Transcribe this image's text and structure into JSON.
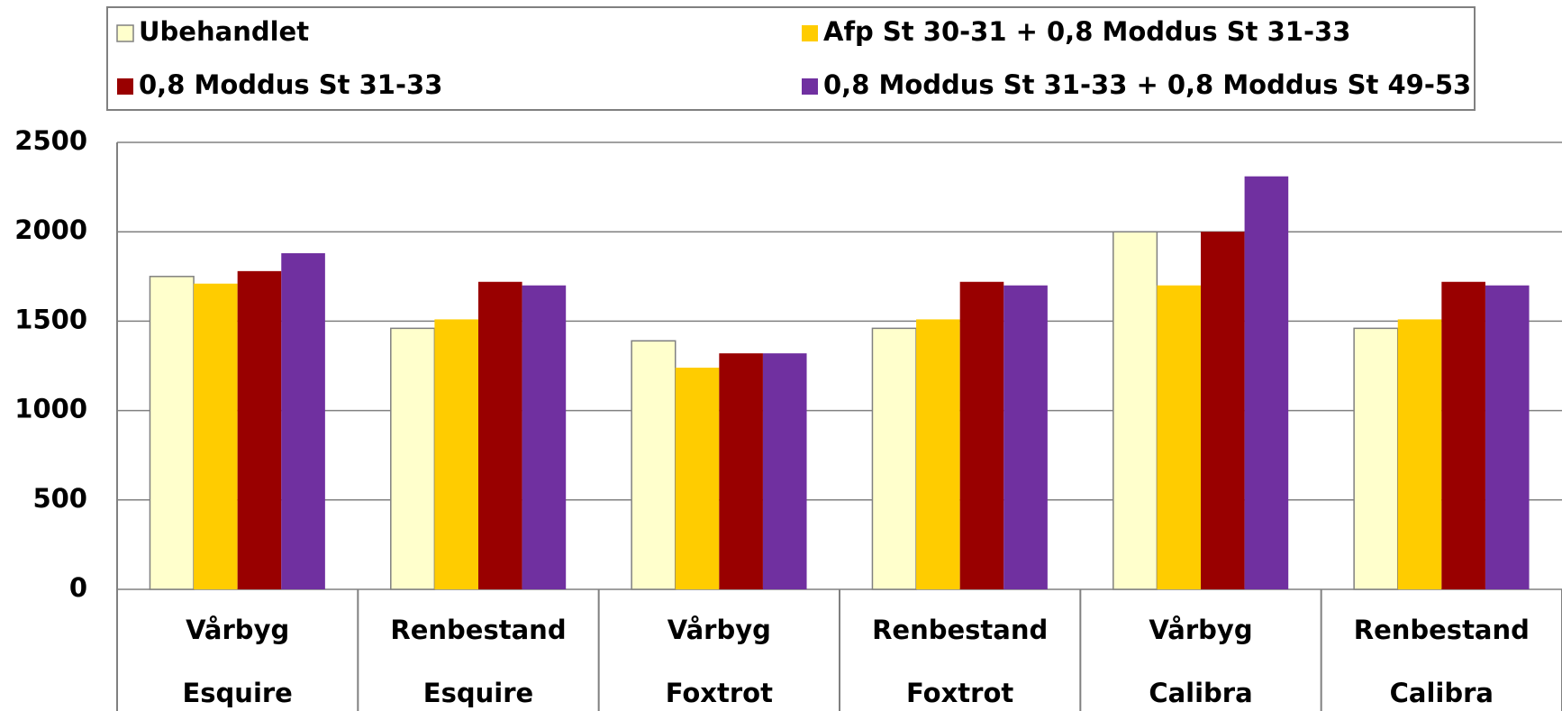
{
  "chart_data": {
    "type": "bar",
    "categories": [
      [
        "Vårbyg",
        "Esquire"
      ],
      [
        "Renbestand",
        "Esquire"
      ],
      [
        "Vårbyg",
        "Foxtrot"
      ],
      [
        "Renbestand",
        "Foxtrot"
      ],
      [
        "Vårbyg",
        "Calibra"
      ],
      [
        "Renbestand",
        "Calibra"
      ]
    ],
    "series": [
      {
        "name": "Ubehandlet",
        "color": "#ffffcc",
        "values": [
          1750,
          1460,
          1390,
          1460,
          2000,
          1460
        ]
      },
      {
        "name": "Afp St 30-31 + 0,8 Moddus St 31-33",
        "color": "#ffcc00",
        "values": [
          1710,
          1510,
          1240,
          1510,
          1700,
          1510
        ]
      },
      {
        "name": "0,8 Moddus St 31-33",
        "color": "#990000",
        "values": [
          1780,
          1720,
          1320,
          1720,
          2000,
          1720
        ]
      },
      {
        "name": "0,8 Moddus St 31-33 + 0,8 Moddus St 49-53",
        "color": "#7030a0",
        "values": [
          1880,
          1700,
          1320,
          1700,
          2310,
          1700
        ]
      }
    ],
    "ylim": [
      0,
      2500
    ],
    "yticks": [
      0,
      500,
      1000,
      1500,
      2000,
      2500
    ],
    "grid": true
  }
}
